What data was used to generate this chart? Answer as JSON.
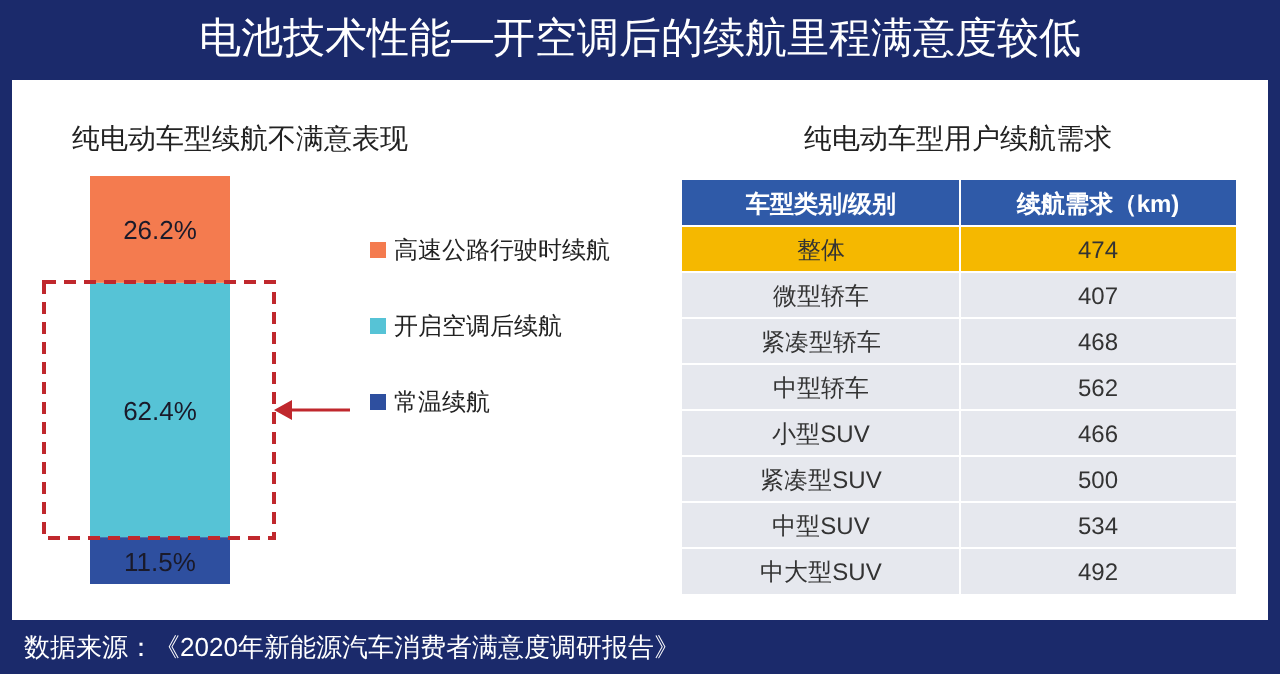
{
  "chart_data": [
    {
      "type": "bar",
      "stacked": true,
      "title": "电池技术性能—开空调后的续航里程满意度较低",
      "subtitle": "纯电动车型续航不满意表现",
      "categories": [
        null
      ],
      "legend": "right",
      "series": [
        {
          "name": "常温续航",
          "color": "#2e4f9f",
          "values": [
            11.5
          ],
          "value_labels": [
            "11.5%"
          ]
        },
        {
          "name": "开启空调后续航",
          "color": "#56c3d6",
          "values": [
            62.4
          ],
          "value_labels": [
            "62.4%"
          ]
        },
        {
          "name": "高速公路行驶时续航",
          "color": "#f47b4f",
          "values": [
            26.2
          ],
          "value_labels": [
            "26.2%"
          ]
        }
      ],
      "annotations": [
        "数据来源：《2020年新能源汽车消费者满意度调研报告》"
      ]
    },
    {
      "type": "other",
      "title": "纯电动车型用户续航需求",
      "xlabel": "车型类别/级别",
      "ylabel": "续航需求（km)",
      "data_labels": true,
      "categories": [
        "整体",
        "微型轿车",
        "紧凑型轿车",
        "中型轿车",
        "小型SUV",
        "紧凑型SUV",
        "中型SUV",
        "中大型SUV"
      ],
      "values": [
        474,
        407,
        468,
        562,
        466,
        500,
        534,
        492
      ],
      "colors": [
        "#f5b800",
        "#e6e8ee",
        "#e6e8ee",
        "#e6e8ee",
        "#e6e8ee",
        "#e6e8ee",
        "#e6e8ee",
        "#e6e8ee"
      ]
    }
  ]
}
